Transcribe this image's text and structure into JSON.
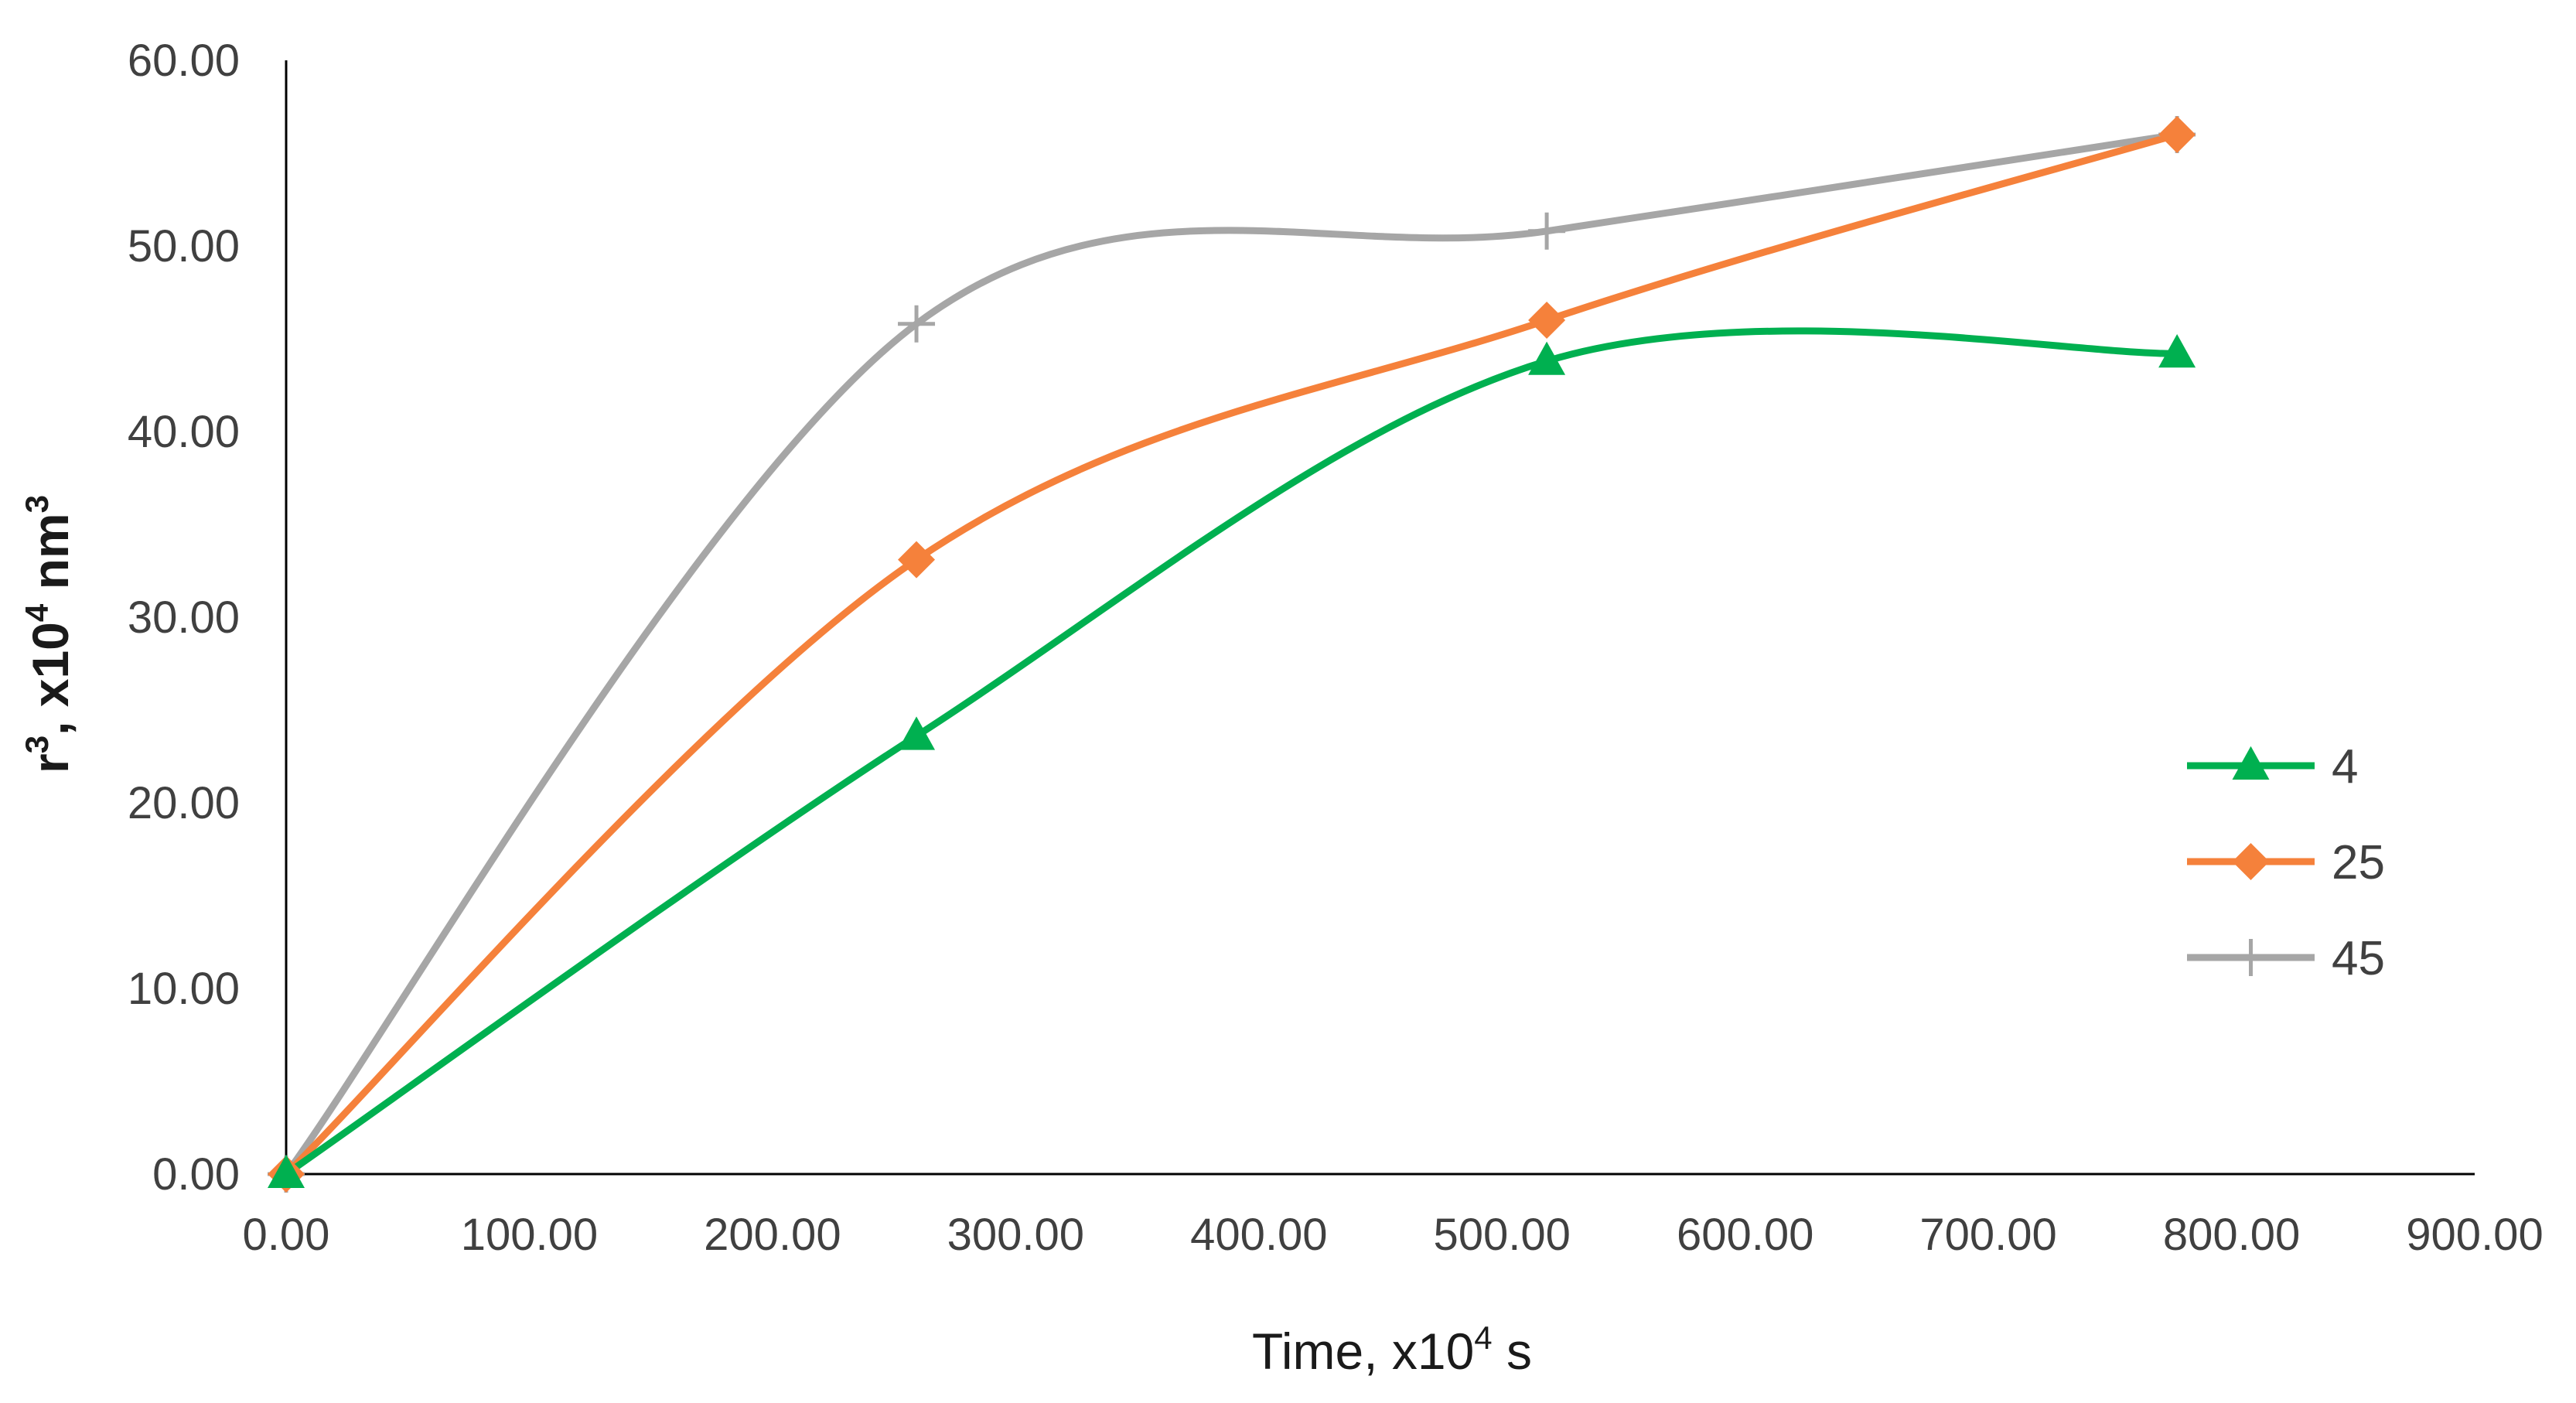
{
  "chart_data": {
    "type": "line",
    "title": "",
    "xlabel": {
      "prefix": "Time, x10",
      "sup": "4",
      "suffix": " s"
    },
    "ylabel": {
      "p1": "r",
      "sup1": "3",
      "p2": ", x10",
      "sup2": "4",
      "p3": " nm",
      "sup3": "3"
    },
    "xlim": [
      0,
      900
    ],
    "ylim": [
      0,
      60
    ],
    "x_ticks": [
      "0.00",
      "100.00",
      "200.00",
      "300.00",
      "400.00",
      "500.00",
      "600.00",
      "700.00",
      "800.00",
      "900.00"
    ],
    "y_ticks": [
      "0.00",
      "10.00",
      "20.00",
      "30.00",
      "40.00",
      "50.00",
      "60.00"
    ],
    "grid": false,
    "smooth": true,
    "legend_position": "right",
    "series": [
      {
        "name": "4",
        "color": "#00b050",
        "marker": "triangle",
        "x": [
          0,
          259.2,
          518.4,
          777.6
        ],
        "y": [
          0,
          23.6,
          43.8,
          44.2
        ]
      },
      {
        "name": "25",
        "color": "#f5813b",
        "marker": "diamond",
        "x": [
          0,
          259.2,
          518.4,
          777.6
        ],
        "y": [
          0,
          33.1,
          46.0,
          56.0
        ]
      },
      {
        "name": "45",
        "color": "#a6a6a6",
        "marker": "plus",
        "x": [
          0,
          259.2,
          518.4,
          777.6
        ],
        "y": [
          0,
          45.8,
          50.8,
          56.0
        ]
      }
    ]
  }
}
